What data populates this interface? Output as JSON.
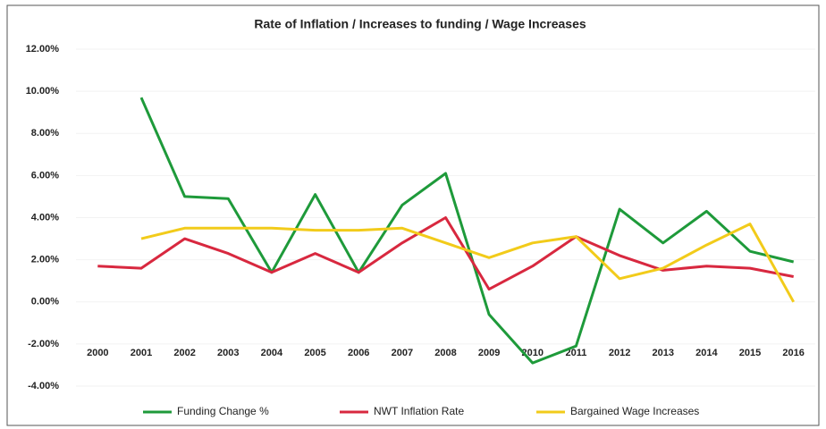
{
  "chart_data": {
    "type": "line",
    "title": "Rate of Inflation / Increases to funding / Wage Increases",
    "categories": [
      "2000",
      "2001",
      "2002",
      "2003",
      "2004",
      "2005",
      "2006",
      "2007",
      "2008",
      "2009",
      "2010",
      "2011",
      "2012",
      "2013",
      "2014",
      "2015",
      "2016"
    ],
    "series": [
      {
        "name": "Funding Change %",
        "color": "#1e9a3a",
        "values": [
          null,
          9.7,
          5.0,
          4.9,
          1.4,
          5.1,
          1.4,
          4.6,
          6.1,
          -0.6,
          -2.9,
          -2.1,
          4.4,
          2.8,
          4.3,
          2.4,
          1.9
        ]
      },
      {
        "name": "NWT Inflation Rate",
        "color": "#d8283f",
        "values": [
          1.7,
          1.6,
          3.0,
          2.3,
          1.4,
          2.3,
          1.4,
          2.8,
          4.0,
          0.6,
          1.7,
          3.1,
          2.2,
          1.5,
          1.7,
          1.6,
          1.2
        ]
      },
      {
        "name": "Bargained Wage Increases",
        "color": "#f2cb1a",
        "values": [
          null,
          3.0,
          3.5,
          3.5,
          3.5,
          3.4,
          3.4,
          3.5,
          2.8,
          2.1,
          2.8,
          3.1,
          1.1,
          1.6,
          2.7,
          3.7,
          0.0
        ]
      }
    ],
    "ylim": [
      -4,
      12
    ],
    "yticks": [
      {
        "value": -4,
        "label": "-4.00%"
      },
      {
        "value": -2,
        "label": "-2.00%"
      },
      {
        "value": 0,
        "label": "0.00%"
      },
      {
        "value": 2,
        "label": "2.00%"
      },
      {
        "value": 4,
        "label": "4.00%"
      },
      {
        "value": 6,
        "label": "6.00%"
      },
      {
        "value": 8,
        "label": "8.00%"
      },
      {
        "value": 10,
        "label": "10.00%"
      },
      {
        "value": 12,
        "label": "12.00%"
      }
    ],
    "grid": true,
    "legend": "bottom"
  }
}
